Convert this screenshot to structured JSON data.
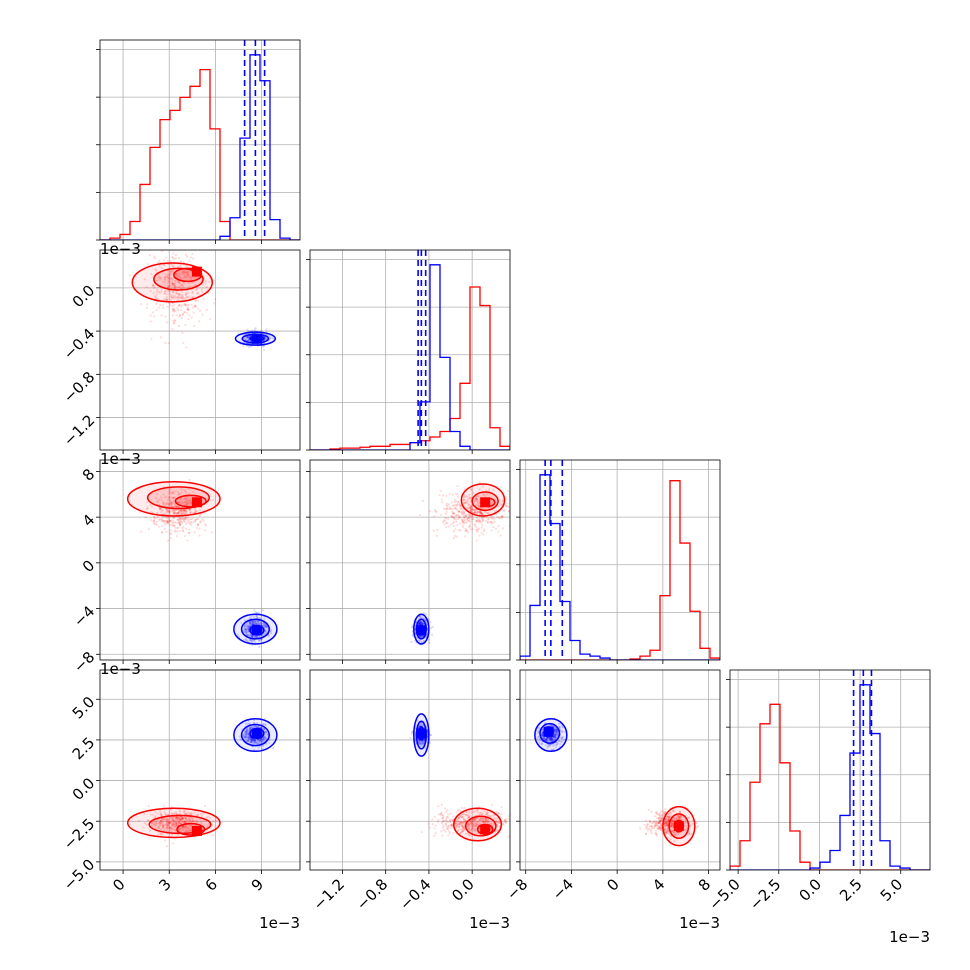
{
  "chart_data": {
    "type": "corner",
    "scale_factor": "1e-3",
    "parameters": [
      {
        "range": [
          -1.5,
          11.5
        ],
        "ticks": [
          0,
          3,
          6,
          9
        ],
        "tick_labels": [
          "0",
          "3",
          "6",
          "9"
        ],
        "offset_text": "1e−3",
        "rotate": false
      },
      {
        "range": [
          -1.5,
          0.35
        ],
        "ticks": [
          -1.2,
          -0.8,
          -0.4,
          0.0
        ],
        "tick_labels": [
          "−1.2",
          "−0.8",
          "−0.4",
          "0.0"
        ],
        "offset_text": "1e−3",
        "rotate": true
      },
      {
        "range": [
          -8.5,
          9
        ],
        "ticks": [
          -8,
          -4,
          0,
          4,
          8
        ],
        "tick_labels": [
          "−8",
          "−4",
          "0",
          "4",
          "8"
        ],
        "offset_text": "1e−3",
        "rotate": false
      },
      {
        "range": [
          -5.5,
          6.8
        ],
        "ticks": [
          -5.0,
          -2.5,
          0.0,
          2.5,
          5.0
        ],
        "tick_labels": [
          "−5.0",
          "−2.5",
          "0.0",
          "2.5",
          "5.0"
        ],
        "offset_text": "1e−3",
        "rotate": true
      }
    ],
    "series": [
      {
        "color": "#ff0000",
        "histograms": [
          {
            "edges": [
              -1.5,
              -0.85,
              -0.2,
              0.45,
              1.1,
              1.75,
              2.4,
              3.05,
              3.7,
              4.35,
              5.0,
              5.65,
              6.3,
              6.95,
              7.6,
              8.25,
              8.9,
              9.55,
              10.2,
              10.85,
              11.5
            ],
            "counts": [
              0,
              0.01,
              0.03,
              0.1,
              0.3,
              0.5,
              0.65,
              0.7,
              0.77,
              0.83,
              0.92,
              0.6,
              0.1,
              0,
              0,
              0,
              0,
              0,
              0,
              0
            ]
          },
          {
            "edges": [
              -1.5,
              -1.4075,
              -1.315,
              -1.2225,
              -1.13,
              -1.0375,
              -0.945,
              -0.8525,
              -0.76,
              -0.6675,
              -0.575,
              -0.4825,
              -0.39,
              -0.2975,
              -0.205,
              -0.1125,
              -0.02,
              0.0725,
              0.165,
              0.2575,
              0.35
            ],
            "counts": [
              0,
              0,
              0.005,
              0.01,
              0.01,
              0.015,
              0.02,
              0.02,
              0.03,
              0.03,
              0.04,
              0.05,
              0.07,
              0.1,
              0.17,
              0.36,
              0.88,
              0.78,
              0.12,
              0.02
            ]
          },
          {
            "edges": [
              -8.5,
              -7.625,
              -6.75,
              -5.875,
              -5.0,
              -4.125,
              -3.25,
              -2.375,
              -1.5,
              -0.625,
              0.25,
              1.125,
              2.0,
              2.875,
              3.75,
              4.625,
              5.5,
              6.375,
              7.25,
              8.125,
              9.0
            ],
            "counts": [
              0,
              0,
              0,
              0,
              0,
              0,
              0,
              0,
              0,
              0,
              0,
              0.005,
              0.02,
              0.05,
              0.33,
              0.92,
              0.6,
              0.25,
              0.06,
              0.01
            ]
          },
          {
            "edges": [
              -5.5,
              -4.885,
              -4.27,
              -3.655,
              -3.04,
              -2.425,
              -1.81,
              -1.195,
              -0.58,
              0.035,
              0.65,
              1.265,
              1.88,
              2.495,
              3.11,
              3.725,
              4.34,
              4.955,
              5.57,
              6.185,
              6.8
            ],
            "counts": [
              0.02,
              0.15,
              0.45,
              0.75,
              0.85,
              0.55,
              0.2,
              0.04,
              0,
              0,
              0,
              0,
              0,
              0,
              0,
              0,
              0,
              0,
              0,
              0
            ]
          }
        ],
        "scatter_centers": [
          3.5,
          0.0,
          4.5,
          -2.6
        ],
        "scatter_spread": [
          1.6,
          0.3,
          1.6,
          0.7
        ],
        "contours": {
          "0-1": [
            {
              "center": [
                3.2,
                0.05
              ],
              "rx": 2.6,
              "ry": 0.18
            },
            {
              "center": [
                3.6,
                0.08
              ],
              "rx": 1.6,
              "ry": 0.1
            },
            {
              "center": [
                4.2,
                0.12
              ],
              "rx": 0.9,
              "ry": 0.06
            }
          ],
          "0-2": [
            {
              "center": [
                3.3,
                5.6
              ],
              "rx": 3.0,
              "ry": 1.5
            },
            {
              "center": [
                3.6,
                5.7
              ],
              "rx": 2.0,
              "ry": 0.95
            },
            {
              "center": [
                4.4,
                5.4
              ],
              "rx": 1.0,
              "ry": 0.5
            }
          ],
          "1-2": [
            {
              "center": [
                0.1,
                5.5
              ],
              "rx": 0.2,
              "ry": 1.4
            },
            {
              "center": [
                0.12,
                5.4
              ],
              "rx": 0.12,
              "ry": 0.8
            },
            {
              "center": [
                0.15,
                5.3
              ],
              "rx": 0.06,
              "ry": 0.35
            }
          ],
          "0-3": [
            {
              "center": [
                3.3,
                -2.6
              ],
              "rx": 3.0,
              "ry": 0.9
            },
            {
              "center": [
                3.7,
                -2.7
              ],
              "rx": 2.0,
              "ry": 0.55
            },
            {
              "center": [
                4.4,
                -3.0
              ],
              "rx": 0.9,
              "ry": 0.35
            }
          ],
          "1-3": [
            {
              "center": [
                0.05,
                -2.7
              ],
              "rx": 0.22,
              "ry": 1.0
            },
            {
              "center": [
                0.08,
                -2.8
              ],
              "rx": 0.14,
              "ry": 0.6
            },
            {
              "center": [
                0.12,
                -3.0
              ],
              "rx": 0.07,
              "ry": 0.3
            }
          ],
          "2-3": [
            {
              "center": [
                5.4,
                -2.8
              ],
              "rx": 1.4,
              "ry": 1.2
            },
            {
              "center": [
                5.4,
                -2.8
              ],
              "rx": 0.85,
              "ry": 0.75
            },
            {
              "center": [
                5.4,
                -2.8
              ],
              "rx": 0.4,
              "ry": 0.35
            }
          ]
        },
        "peaks": {
          "0-1": [
            4.8,
            0.15
          ],
          "0-2": [
            4.8,
            5.3
          ],
          "1-2": [
            0.12,
            5.3
          ],
          "0-3": [
            4.8,
            -3.1
          ],
          "1-3": [
            0.12,
            -3.0
          ],
          "2-3": [
            5.4,
            -2.8
          ]
        }
      },
      {
        "color": "#0000ff",
        "histograms": [
          {
            "edges": [
              -1.5,
              -0.85,
              -0.2,
              0.45,
              1.1,
              1.75,
              2.4,
              3.05,
              3.7,
              4.35,
              5.0,
              5.65,
              6.3,
              6.95,
              7.6,
              8.25,
              8.9,
              9.55,
              10.2,
              10.85,
              11.5
            ],
            "counts": [
              0,
              0,
              0,
              0,
              0,
              0,
              0,
              0,
              0,
              0,
              0,
              0,
              0.02,
              0.12,
              0.55,
              1.0,
              0.86,
              0.11,
              0.01,
              0
            ]
          },
          {
            "edges": [
              -1.5,
              -1.4075,
              -1.315,
              -1.2225,
              -1.13,
              -1.0375,
              -0.945,
              -0.8525,
              -0.76,
              -0.6675,
              -0.575,
              -0.4825,
              -0.39,
              -0.2975,
              -0.205,
              -0.1125,
              -0.02,
              0.0725,
              0.165,
              0.2575,
              0.35
            ],
            "counts": [
              0,
              0,
              0,
              0,
              0,
              0,
              0,
              0,
              0,
              0,
              0.04,
              0.26,
              1.0,
              0.5,
              0.1,
              0.02,
              0,
              0,
              0,
              0
            ]
          },
          {
            "edges": [
              -8.5,
              -7.625,
              -6.75,
              -5.875,
              -5.0,
              -4.125,
              -3.25,
              -2.375,
              -1.5,
              -0.625,
              0.25,
              1.125,
              2.0,
              2.875,
              3.75,
              4.625,
              5.5,
              6.375,
              7.25,
              8.125,
              9.0
            ],
            "counts": [
              0.02,
              0.28,
              0.95,
              0.7,
              0.3,
              0.1,
              0.03,
              0.02,
              0.01,
              0,
              0,
              0,
              0,
              0,
              0,
              0,
              0,
              0,
              0,
              0
            ]
          },
          {
            "edges": [
              -5.5,
              -4.885,
              -4.27,
              -3.655,
              -3.04,
              -2.425,
              -1.81,
              -1.195,
              -0.58,
              0.035,
              0.65,
              1.265,
              1.88,
              2.495,
              3.11,
              3.725,
              4.34,
              4.955,
              5.57,
              6.185,
              6.8
            ],
            "counts": [
              0,
              0,
              0,
              0,
              0,
              0,
              0,
              0,
              0.01,
              0.04,
              0.1,
              0.28,
              0.6,
              0.95,
              0.7,
              0.15,
              0.02,
              0.01,
              0,
              0
            ]
          }
        ],
        "quantiles": [
          [
            7.9,
            8.6,
            9.2
          ],
          [
            -0.5,
            -0.47,
            -0.43
          ],
          [
            -6.3,
            -5.8,
            -4.8
          ],
          [
            2.1,
            2.7,
            3.2
          ]
        ],
        "scatter_centers": [
          8.6,
          -0.47,
          -5.8,
          2.8
        ],
        "scatter_spread": [
          0.7,
          0.06,
          0.9,
          0.6
        ],
        "contours": {
          "0-1": [
            {
              "center": [
                8.6,
                -0.47
              ],
              "rx": 1.3,
              "ry": 0.06
            },
            {
              "center": [
                8.6,
                -0.47
              ],
              "rx": 0.85,
              "ry": 0.04
            },
            {
              "center": [
                8.7,
                -0.47
              ],
              "rx": 0.45,
              "ry": 0.02
            }
          ],
          "0-2": [
            {
              "center": [
                8.6,
                -5.8
              ],
              "rx": 1.4,
              "ry": 1.3
            },
            {
              "center": [
                8.6,
                -5.8
              ],
              "rx": 0.9,
              "ry": 0.85
            },
            {
              "center": [
                8.7,
                -5.9
              ],
              "rx": 0.45,
              "ry": 0.4
            }
          ],
          "1-2": [
            {
              "center": [
                -0.47,
                -5.8
              ],
              "rx": 0.07,
              "ry": 1.3
            },
            {
              "center": [
                -0.47,
                -5.8
              ],
              "rx": 0.045,
              "ry": 0.85
            },
            {
              "center": [
                -0.47,
                -5.9
              ],
              "rx": 0.02,
              "ry": 0.4
            }
          ],
          "0-3": [
            {
              "center": [
                8.6,
                2.8
              ],
              "rx": 1.4,
              "ry": 1.0
            },
            {
              "center": [
                8.6,
                2.8
              ],
              "rx": 0.9,
              "ry": 0.65
            },
            {
              "center": [
                8.7,
                2.9
              ],
              "rx": 0.45,
              "ry": 0.3
            }
          ],
          "1-3": [
            {
              "center": [
                -0.47,
                2.8
              ],
              "rx": 0.07,
              "ry": 1.3
            },
            {
              "center": [
                -0.47,
                2.8
              ],
              "rx": 0.045,
              "ry": 0.85
            },
            {
              "center": [
                -0.47,
                2.9
              ],
              "rx": 0.02,
              "ry": 0.4
            }
          ],
          "2-3": [
            {
              "center": [
                -5.8,
                2.8
              ],
              "rx": 1.4,
              "ry": 1.0
            },
            {
              "center": [
                -5.9,
                2.9
              ],
              "rx": 0.85,
              "ry": 0.6
            },
            {
              "center": [
                -6.0,
                3.0
              ],
              "rx": 0.4,
              "ry": 0.3
            }
          ]
        },
        "peaks": {
          "0-1": [
            8.7,
            -0.47
          ],
          "0-2": [
            8.7,
            -5.9
          ],
          "1-2": [
            -0.47,
            -5.9
          ],
          "0-3": [
            8.7,
            2.9
          ],
          "1-3": [
            -0.47,
            2.9
          ],
          "2-3": [
            -6.0,
            3.0
          ]
        }
      }
    ],
    "grid": true,
    "legend": "none"
  }
}
